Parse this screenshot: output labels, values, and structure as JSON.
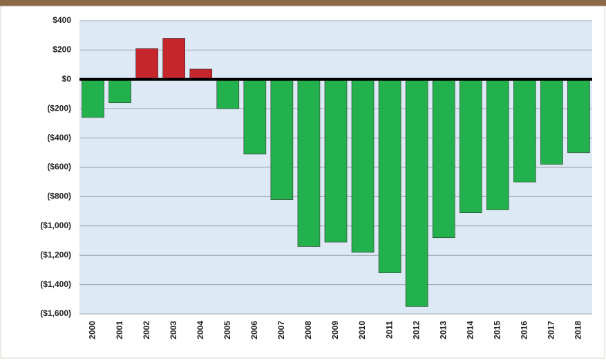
{
  "chart_data": {
    "type": "bar",
    "categories": [
      "2000",
      "2001",
      "2002",
      "2003",
      "2004",
      "2005",
      "2006",
      "2007",
      "2008",
      "2009",
      "2010",
      "2011",
      "2012",
      "2013",
      "2014",
      "2015",
      "2016",
      "2017",
      "2018"
    ],
    "values": [
      -260,
      -160,
      210,
      280,
      70,
      -200,
      -510,
      -820,
      -1140,
      -1110,
      -1180,
      -1320,
      -1550,
      -1080,
      -910,
      -890,
      -700,
      -580,
      -500
    ],
    "positive_color": "#c4262b",
    "negative_color": "#22b14c",
    "ylim": [
      -1600,
      400
    ],
    "yticks": [
      {
        "value": -1600,
        "label": "($1,600)"
      },
      {
        "value": -1400,
        "label": "($1,400)"
      },
      {
        "value": -1200,
        "label": "($1,200)"
      },
      {
        "value": -1000,
        "label": "($1,000)"
      },
      {
        "value": -800,
        "label": "($800)"
      },
      {
        "value": -600,
        "label": "($600)"
      },
      {
        "value": -400,
        "label": "($400)"
      },
      {
        "value": -200,
        "label": "($200)"
      },
      {
        "value": 0,
        "label": "$0"
      },
      {
        "value": 200,
        "label": "$200"
      },
      {
        "value": 400,
        "label": "$400"
      }
    ],
    "grid": true
  }
}
